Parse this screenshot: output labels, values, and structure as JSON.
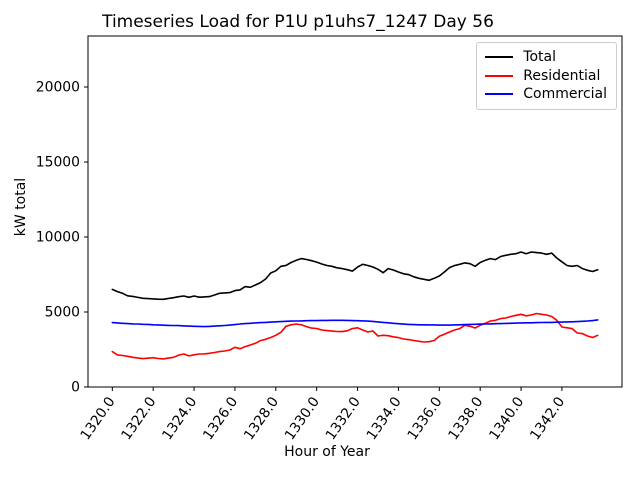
{
  "chart_data": {
    "type": "line",
    "title": "Timeseries Load for P1U p1uhs7_1247  Day 56",
    "xlabel": "Hour of Year",
    "ylabel": "kW total",
    "xlim": [
      1318.81,
      1344.94
    ],
    "ylim": [
      0,
      23400
    ],
    "grid": false,
    "legend_position": "upper right",
    "xticks": [
      1320,
      1322,
      1324,
      1326,
      1328,
      1330,
      1332,
      1334,
      1336,
      1338,
      1340,
      1342
    ],
    "xtick_labels": [
      "1320.0",
      "1322.0",
      "1324.0",
      "1326.0",
      "1328.0",
      "1330.0",
      "1332.0",
      "1334.0",
      "1336.0",
      "1338.0",
      "1340.0",
      "1342.0"
    ],
    "yticks": [
      0,
      5000,
      10000,
      15000,
      20000
    ],
    "ytick_labels": [
      "0",
      "5000",
      "10000",
      "15000",
      "20000"
    ],
    "x": [
      1320.0,
      1320.25,
      1320.5,
      1320.75,
      1321.0,
      1321.25,
      1321.5,
      1321.75,
      1322.0,
      1322.25,
      1322.5,
      1322.75,
      1323.0,
      1323.25,
      1323.5,
      1323.75,
      1324.0,
      1324.25,
      1324.5,
      1324.75,
      1325.0,
      1325.25,
      1325.5,
      1325.75,
      1326.0,
      1326.25,
      1326.5,
      1326.75,
      1327.0,
      1327.25,
      1327.5,
      1327.75,
      1328.0,
      1328.25,
      1328.5,
      1328.75,
      1329.0,
      1329.25,
      1329.5,
      1329.75,
      1330.0,
      1330.25,
      1330.5,
      1330.75,
      1331.0,
      1331.25,
      1331.5,
      1331.75,
      1332.0,
      1332.25,
      1332.5,
      1332.75,
      1333.0,
      1333.25,
      1333.5,
      1333.75,
      1334.0,
      1334.25,
      1334.5,
      1334.75,
      1335.0,
      1335.25,
      1335.5,
      1335.75,
      1336.0,
      1336.25,
      1336.5,
      1336.75,
      1337.0,
      1337.25,
      1337.5,
      1337.75,
      1338.0,
      1338.25,
      1338.5,
      1338.75,
      1339.0,
      1339.25,
      1339.5,
      1339.75,
      1340.0,
      1340.25,
      1340.5,
      1340.75,
      1341.0,
      1341.25,
      1341.5,
      1341.75,
      1342.0,
      1342.25,
      1342.5,
      1342.75,
      1343.0,
      1343.25,
      1343.5,
      1343.75
    ],
    "series": [
      {
        "name": "Total",
        "color": "#000000",
        "values": [
          6510,
          6360,
          6250,
          6080,
          6040,
          5975,
          5915,
          5890,
          5870,
          5855,
          5845,
          5905,
          5955,
          6020,
          6065,
          5980,
          6065,
          5985,
          6005,
          6030,
          6135,
          6245,
          6270,
          6295,
          6430,
          6470,
          6690,
          6650,
          6800,
          6960,
          7200,
          7600,
          7750,
          8050,
          8110,
          8300,
          8450,
          8560,
          8500,
          8420,
          8330,
          8200,
          8100,
          8045,
          7950,
          7890,
          7820,
          7730,
          8000,
          8180,
          8100,
          8000,
          7850,
          7620,
          7890,
          7800,
          7665,
          7550,
          7490,
          7350,
          7250,
          7180,
          7115,
          7250,
          7400,
          7665,
          7960,
          8100,
          8180,
          8270,
          8220,
          8050,
          8300,
          8445,
          8560,
          8490,
          8700,
          8780,
          8850,
          8890,
          9000,
          8890,
          9000,
          8960,
          8930,
          8845,
          8930,
          8600,
          8350,
          8100,
          8050,
          8100,
          7890,
          7780,
          7700,
          7820
        ]
      },
      {
        "name": "Residential",
        "color": "#ff0000",
        "values": [
          2360,
          2140,
          2100,
          2050,
          1980,
          1930,
          1890,
          1920,
          1955,
          1900,
          1870,
          1930,
          1980,
          2130,
          2200,
          2070,
          2150,
          2200,
          2210,
          2245,
          2300,
          2360,
          2400,
          2467,
          2645,
          2556,
          2690,
          2800,
          2913,
          3090,
          3180,
          3300,
          3450,
          3650,
          4050,
          4150,
          4200,
          4150,
          4030,
          3930,
          3900,
          3800,
          3760,
          3730,
          3700,
          3690,
          3750,
          3900,
          3950,
          3800,
          3667,
          3733,
          3400,
          3447,
          3420,
          3350,
          3290,
          3200,
          3160,
          3100,
          3050,
          3000,
          3020,
          3100,
          3380,
          3520,
          3667,
          3800,
          3890,
          4113,
          4050,
          3933,
          4113,
          4250,
          4400,
          4450,
          4560,
          4600,
          4700,
          4780,
          4850,
          4750,
          4800,
          4900,
          4850,
          4800,
          4700,
          4450,
          4000,
          3950,
          3890,
          3600,
          3560,
          3400,
          3300,
          3450
        ]
      },
      {
        "name": "Commercial",
        "color": "#0000ff",
        "values": [
          4290,
          4270,
          4250,
          4230,
          4210,
          4200,
          4180,
          4170,
          4150,
          4140,
          4120,
          4110,
          4100,
          4090,
          4070,
          4060,
          4050,
          4040,
          4030,
          4040,
          4060,
          4080,
          4100,
          4130,
          4160,
          4200,
          4230,
          4250,
          4270,
          4290,
          4310,
          4330,
          4350,
          4360,
          4380,
          4390,
          4400,
          4410,
          4420,
          4430,
          4430,
          4440,
          4440,
          4450,
          4450,
          4450,
          4440,
          4430,
          4420,
          4410,
          4390,
          4370,
          4340,
          4310,
          4280,
          4250,
          4220,
          4190,
          4170,
          4160,
          4150,
          4150,
          4140,
          4140,
          4130,
          4130,
          4130,
          4140,
          4150,
          4160,
          4170,
          4180,
          4190,
          4200,
          4210,
          4220,
          4230,
          4240,
          4250,
          4260,
          4270,
          4280,
          4280,
          4290,
          4300,
          4310,
          4310,
          4320,
          4330,
          4340,
          4350,
          4360,
          4380,
          4400,
          4430,
          4470
        ]
      }
    ],
    "legend": {
      "entries": [
        {
          "label": "Total",
          "color": "#000000"
        },
        {
          "label": "Residential",
          "color": "#ff0000"
        },
        {
          "label": "Commercial",
          "color": "#0000ff"
        }
      ]
    }
  }
}
